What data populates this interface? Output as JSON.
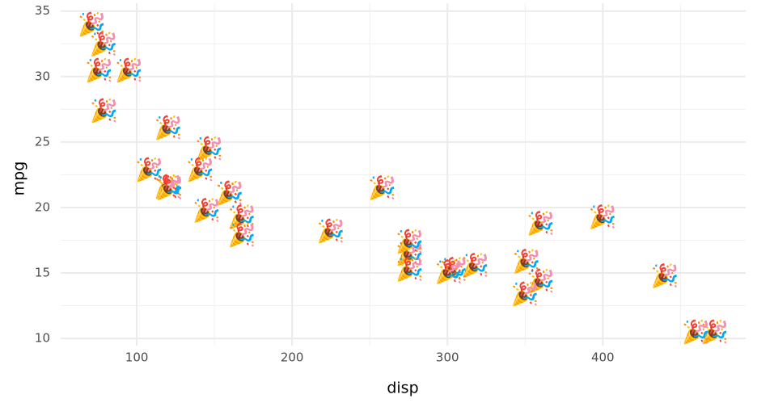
{
  "chart_data": {
    "type": "scatter",
    "x_label": "disp",
    "y_label": "mpg",
    "marker": "🎉",
    "x": [
      160,
      160,
      108,
      258,
      360,
      225,
      360,
      146.7,
      140.8,
      167.6,
      167.6,
      275.8,
      275.8,
      275.8,
      472,
      460,
      440,
      78.7,
      75.7,
      71.1,
      120.1,
      318,
      304,
      350,
      400,
      79,
      120.3,
      95.1,
      351,
      145,
      301,
      121
    ],
    "values": [
      21.0,
      21.0,
      22.8,
      21.4,
      18.7,
      18.1,
      14.3,
      24.4,
      22.8,
      19.2,
      17.8,
      16.4,
      17.3,
      15.2,
      10.4,
      10.4,
      14.7,
      32.4,
      30.4,
      33.9,
      21.5,
      15.5,
      15.2,
      13.3,
      19.2,
      27.3,
      26.0,
      30.4,
      15.8,
      19.7,
      15.0,
      21.4
    ],
    "xlim": [
      51,
      492
    ],
    "ylim": [
      9.45,
      35.6
    ],
    "xticks": [
      100,
      200,
      300,
      400
    ],
    "yticks": [
      10,
      15,
      20,
      25,
      30,
      35
    ],
    "grid": true,
    "minor_grid": true
  }
}
